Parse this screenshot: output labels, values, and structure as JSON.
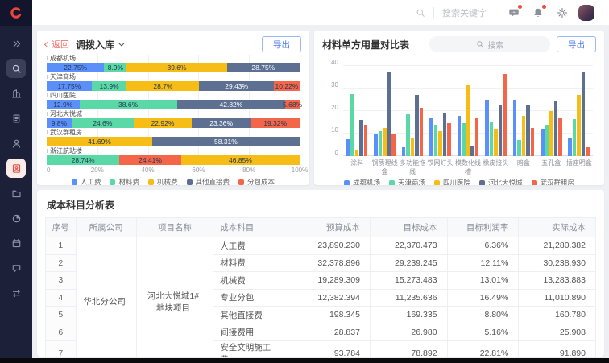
{
  "app": {
    "logo_letter": "C",
    "accent_red": "#E8453F",
    "accent_blue": "#4E7CEE"
  },
  "header": {
    "search_placeholder": "搜索关键字",
    "icons": [
      {
        "icon": "message-icon",
        "badge": true
      },
      {
        "icon": "bell-icon",
        "badge": true
      },
      {
        "icon": "gear-icon",
        "badge": false
      }
    ]
  },
  "sidebar": {
    "items": [
      {
        "icon": "collapse-icon",
        "state": "normal"
      },
      {
        "icon": "search-icon",
        "state": "boxed"
      },
      {
        "icon": "building-icon",
        "state": "normal"
      },
      {
        "icon": "document-icon",
        "state": "normal"
      },
      {
        "icon": "user-icon",
        "state": "normal"
      },
      {
        "icon": "badge-icon",
        "state": "active"
      },
      {
        "icon": "folder-icon",
        "state": "normal"
      },
      {
        "icon": "pie-icon",
        "state": "normal"
      },
      {
        "icon": "calendar-icon",
        "state": "normal"
      },
      {
        "icon": "chat-icon",
        "state": "normal"
      },
      {
        "icon": "transfer-icon",
        "state": "normal"
      }
    ]
  },
  "left_panel": {
    "back_label": "返回",
    "title": "调拨入库",
    "export_label": "导出",
    "chart_data": {
      "type": "bar",
      "orientation": "horizontal-stacked",
      "x_ticks": [
        "0",
        "20%",
        "40%",
        "60%",
        "80%",
        "100%"
      ],
      "xlim": [
        0,
        100
      ],
      "series_colors": {
        "人工费": "#5B8FF9",
        "材料费": "#5AD8A6",
        "机械费": "#F6BD16",
        "其他直接费": "#5D7092",
        "分包成本": "#F4664A"
      },
      "rows": [
        {
          "name": "成都机场",
          "segments": [
            {
              "series": "人工费",
              "value": 22.75
            },
            {
              "series": "材料费",
              "value": 8.9
            },
            {
              "series": "机械费",
              "value": 39.6
            },
            {
              "series": "其他直接费",
              "value": 28.75
            }
          ]
        },
        {
          "name": "天津商场",
          "segments": [
            {
              "series": "人工费",
              "value": 17.75
            },
            {
              "series": "材料费",
              "value": 13.9
            },
            {
              "series": "机械费",
              "value": 28.7
            },
            {
              "series": "其他直接费",
              "value": 29.43
            },
            {
              "series": "分包成本",
              "value": 10.22
            }
          ]
        },
        {
          "name": "四川医院",
          "segments": [
            {
              "series": "人工费",
              "value": 12.9
            },
            {
              "series": "材料费",
              "value": 38.6
            },
            {
              "series": "其他直接费",
              "value": 42.82
            },
            {
              "series": "分包成本",
              "value": 5.68
            }
          ]
        },
        {
          "name": "河北大悦城",
          "segments": [
            {
              "series": "人工费",
              "value": 9.8
            },
            {
              "series": "材料费",
              "value": 24.6
            },
            {
              "series": "机械费",
              "value": 22.92
            },
            {
              "series": "其他直接费",
              "value": 23.36
            },
            {
              "series": "分包成本",
              "value": 19.32
            }
          ]
        },
        {
          "name": "武汉群租房",
          "segments": [
            {
              "series": "机械费",
              "value": 41.69
            },
            {
              "series": "其他直接费",
              "value": 58.31
            }
          ]
        },
        {
          "name": "浙江航站楼",
          "segments": [
            {
              "series": "材料费",
              "value": 28.74
            },
            {
              "series": "分包成本",
              "value": 24.41
            },
            {
              "series": "机械费",
              "value": 46.85
            }
          ]
        }
      ]
    }
  },
  "right_panel": {
    "title": "材料单方用量对比表",
    "search_placeholder": "搜索",
    "export_label": "导出",
    "chart_data": {
      "type": "bar",
      "orientation": "vertical-grouped",
      "ylim": [
        0,
        40
      ],
      "y_ticks": [
        0,
        10,
        20,
        30,
        40
      ],
      "categories": [
        "涂料",
        "钢质理线盒",
        "多功能拖线",
        "铁网灯头",
        "模数化线槽",
        "橡皮接头",
        "暗盒",
        "五孔盒",
        "插座明盒"
      ],
      "series": [
        {
          "name": "成都机场",
          "color": "#5B8FF9",
          "values": [
            7.5,
            9.5,
            4,
            17,
            18,
            25,
            25,
            12,
            8
          ]
        },
        {
          "name": "天津商场",
          "color": "#5AD8A6",
          "values": [
            27.5,
            11,
            18.5,
            14,
            14.5,
            15.5,
            7,
            14,
            16.5
          ]
        },
        {
          "name": "四川医院",
          "color": "#F6BD16",
          "values": [
            3,
            12.5,
            8,
            11,
            31.5,
            12,
            18,
            20,
            27
          ]
        },
        {
          "name": "河北大悦城",
          "color": "#5D7092",
          "values": [
            16,
            37,
            27,
            19,
            4.5,
            22.5,
            22.5,
            24.5,
            37
          ]
        },
        {
          "name": "武汉群租房",
          "color": "#F4664A",
          "values": [
            14,
            9.5,
            21.5,
            14.5,
            17,
            36.5,
            12.5,
            17,
            4
          ]
        }
      ]
    }
  },
  "table": {
    "title": "成本科目分析表",
    "columns": [
      "序号",
      "所属公司",
      "项目名称",
      "成本科目",
      "预算成本",
      "目标成本",
      "目标利润率",
      "实际成本"
    ],
    "company": "华北分公司",
    "project": "河北大悦城1#地块项目",
    "rows": [
      {
        "no": "1",
        "subject": "人工费",
        "budget": "23,890.230",
        "target": "22,370.473",
        "margin": "6.36%",
        "actual": "21,280.382"
      },
      {
        "no": "2",
        "subject": "材料费",
        "budget": "32,378.896",
        "target": "29,239.245",
        "margin": "12.11%",
        "actual": "30,238.930"
      },
      {
        "no": "3",
        "subject": "机械费",
        "budget": "19,289.309",
        "target": "15,273.483",
        "margin": "13.01%",
        "actual": "13,283.883"
      },
      {
        "no": "4",
        "subject": "专业分包",
        "budget": "12,382.394",
        "target": "11,235.636",
        "margin": "16.49%",
        "actual": "11,010.890"
      },
      {
        "no": "5",
        "subject": "其他直接费",
        "budget": "198.345",
        "target": "169.335",
        "margin": "8.80%",
        "actual": "160.780"
      },
      {
        "no": "6",
        "subject": "间接费用",
        "budget": "28.837",
        "target": "26.980",
        "margin": "5.16%",
        "actual": "25.908"
      },
      {
        "no": "7",
        "subject": "安全文明施工费",
        "budget": "93.784",
        "target": "78.892",
        "margin": "22.81%",
        "actual": "91.890"
      }
    ]
  }
}
